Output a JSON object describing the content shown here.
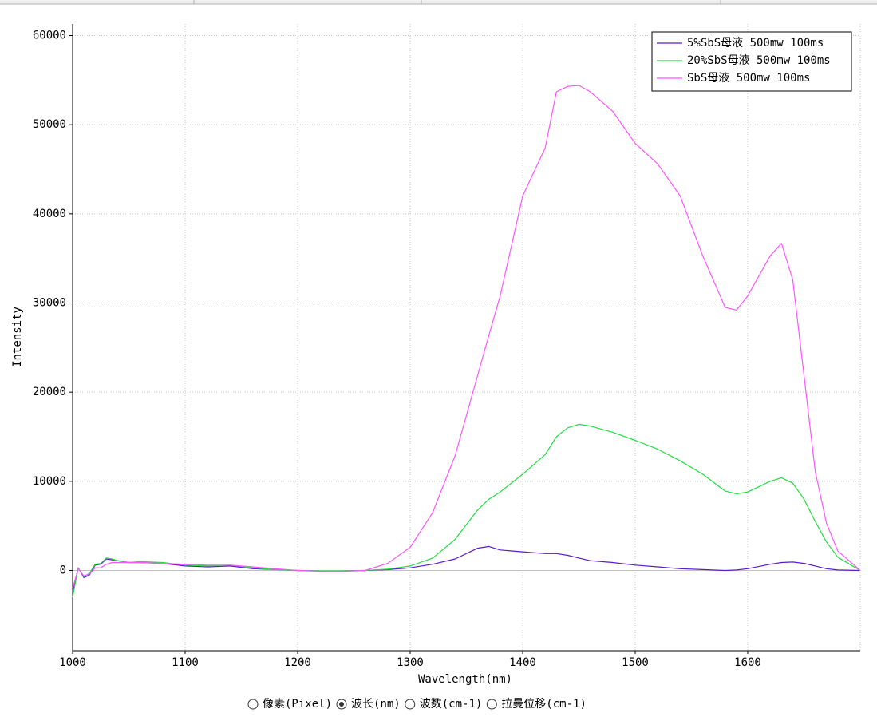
{
  "chart_data": {
    "type": "line",
    "x_label": "Wavelength(nm)",
    "y_label": "Intensity",
    "x": [
      1000,
      1005,
      1010,
      1015,
      1020,
      1025,
      1030,
      1035,
      1040,
      1050,
      1060,
      1080,
      1100,
      1120,
      1140,
      1160,
      1180,
      1200,
      1220,
      1240,
      1260,
      1280,
      1300,
      1320,
      1340,
      1360,
      1370,
      1380,
      1400,
      1420,
      1430,
      1440,
      1450,
      1460,
      1480,
      1500,
      1520,
      1540,
      1560,
      1580,
      1590,
      1600,
      1620,
      1630,
      1640,
      1650,
      1660,
      1670,
      1680,
      1700
    ],
    "series": [
      {
        "name": "5%SbS母液 500mw 100ms",
        "color": "#5a1ad0",
        "values": [
          -2500,
          300,
          -800,
          -500,
          600,
          700,
          1300,
          1200,
          1100,
          900,
          900,
          800,
          500,
          400,
          500,
          200,
          100,
          0,
          -50,
          -50,
          0,
          100,
          300,
          700,
          1300,
          2500,
          2700,
          2300,
          2100,
          1900,
          1900,
          1700,
          1400,
          1100,
          900,
          600,
          400,
          200,
          100,
          0,
          50,
          200,
          700,
          900,
          950,
          800,
          500,
          200,
          50,
          0
        ]
      },
      {
        "name": "20%SbS母液 500mw 100ms",
        "color": "#22dd44",
        "values": [
          -3000,
          300,
          -700,
          -300,
          700,
          800,
          1400,
          1300,
          1100,
          900,
          1000,
          900,
          600,
          500,
          600,
          300,
          100,
          0,
          -50,
          -50,
          0,
          150,
          500,
          1400,
          3500,
          6800,
          8000,
          8800,
          10800,
          13000,
          15000,
          16000,
          16400,
          16200,
          15500,
          14600,
          13600,
          12300,
          10800,
          8900,
          8600,
          8800,
          10000,
          10400,
          9800,
          8000,
          5500,
          3200,
          1500,
          0
        ]
      },
      {
        "name": "SbS母液 500mw 100ms",
        "color": "#ff55ff",
        "values": [
          -2000,
          200,
          -600,
          -400,
          300,
          300,
          700,
          900,
          900,
          900,
          900,
          800,
          700,
          600,
          600,
          400,
          200,
          0,
          -100,
          -100,
          0,
          800,
          2600,
          6500,
          12900,
          21900,
          26400,
          30800,
          42000,
          47400,
          53700,
          54300,
          54400,
          53700,
          51500,
          47900,
          45600,
          42000,
          35300,
          29500,
          29200,
          30800,
          35300,
          36700,
          32600,
          21900,
          11100,
          5300,
          2200,
          0
        ]
      }
    ],
    "xlim": [
      1000,
      1700
    ],
    "ylim": [
      -9000,
      61300
    ],
    "xticks": [
      1000,
      1100,
      1200,
      1300,
      1400,
      1500,
      1600
    ],
    "yticks": [
      0,
      10000,
      20000,
      30000,
      40000,
      50000,
      60000
    ],
    "grid": true,
    "legend": "upper right"
  },
  "options": {
    "items": [
      "像素(Pixel)",
      "波长(nm)",
      "波数(cm-1)",
      "拉曼位移(cm-1)"
    ],
    "selected": 1
  }
}
